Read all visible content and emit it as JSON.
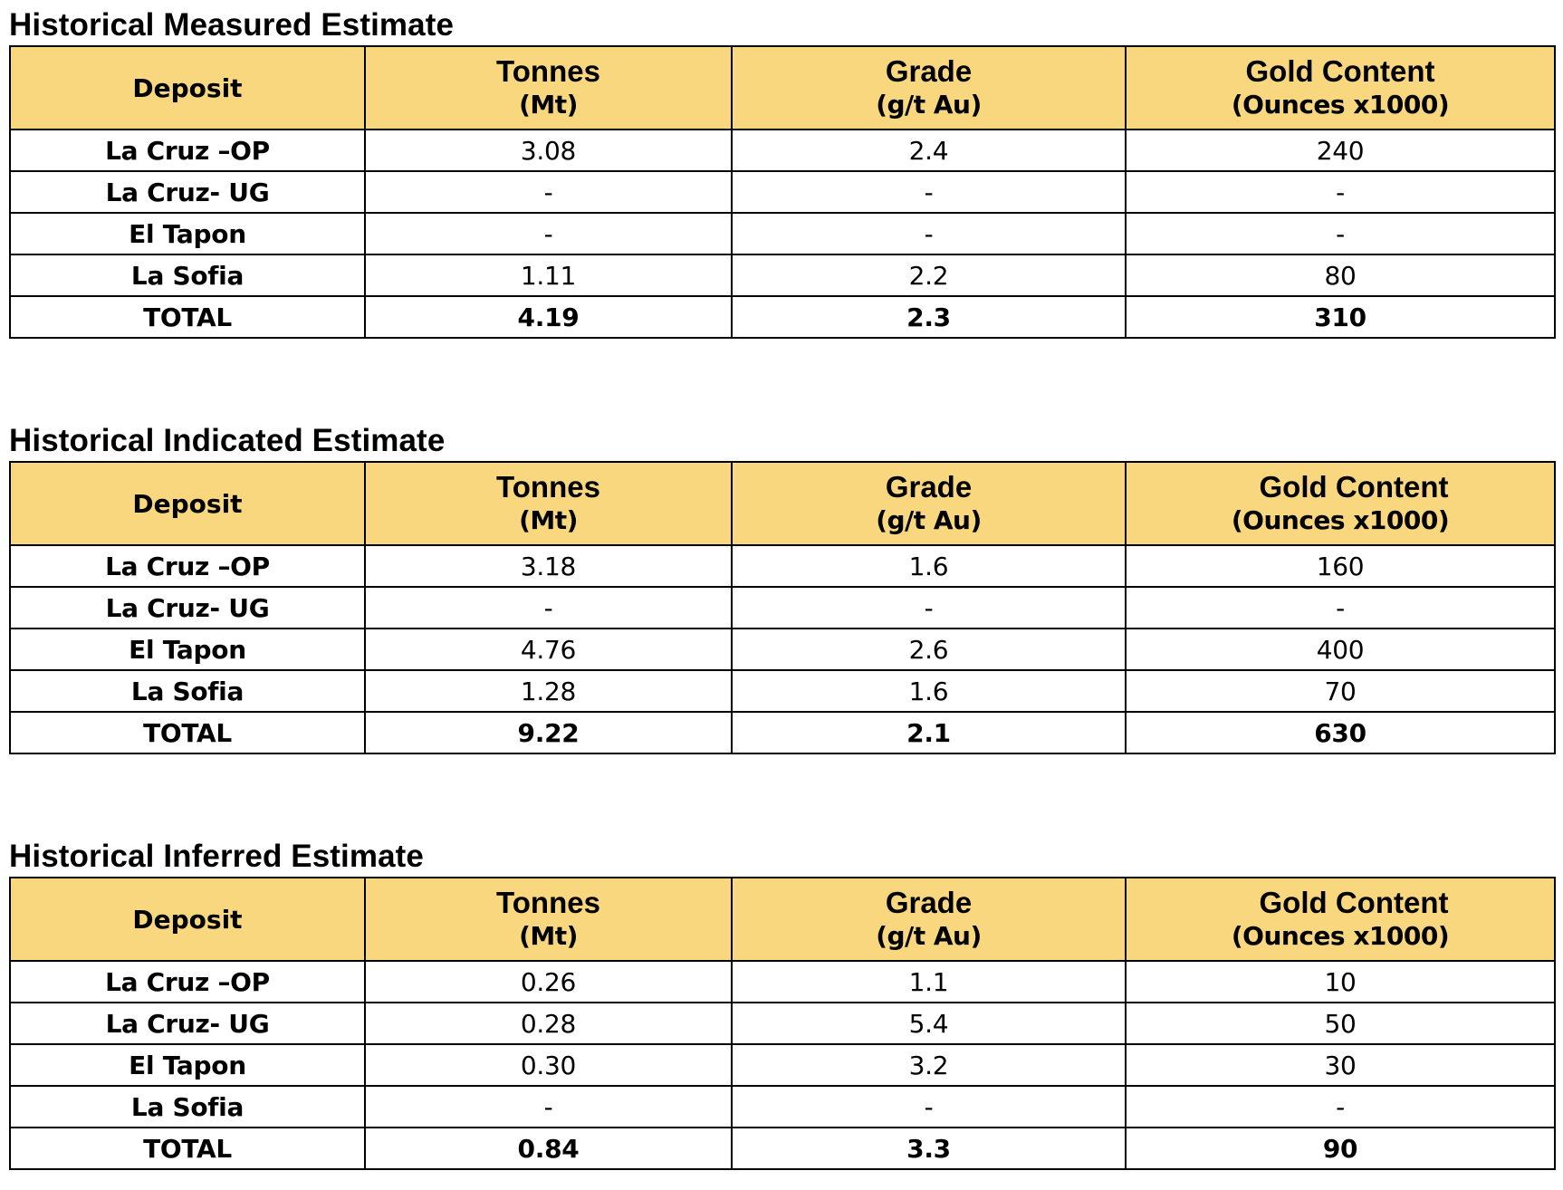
{
  "columns": {
    "deposit": "Deposit",
    "tonnes": "Tonnes",
    "tonnes_unit": "(Mt)",
    "grade": "Grade",
    "grade_unit": "(g/t Au)",
    "gold": "Gold Content",
    "gold_unit": "(Ounces x1000)"
  },
  "tables": [
    {
      "title": "Historical Measured Estimate",
      "rows": [
        {
          "deposit": "La Cruz –OP",
          "tonnes": "3.08",
          "grade": "2.4",
          "gold": "240"
        },
        {
          "deposit": "La Cruz- UG",
          "tonnes": "-",
          "grade": "-",
          "gold": "-"
        },
        {
          "deposit": "El Tapon",
          "tonnes": "-",
          "grade": "-",
          "gold": "-"
        },
        {
          "deposit": "La Sofia",
          "tonnes": "1.11",
          "grade": "2.2",
          "gold": "80"
        }
      ],
      "total": {
        "deposit": "TOTAL",
        "tonnes": "4.19",
        "grade": "2.3",
        "gold": "310"
      }
    },
    {
      "title": "Historical Indicated Estimate",
      "rows": [
        {
          "deposit": "La Cruz –OP",
          "tonnes": "3.18",
          "grade": "1.6",
          "gold": "160"
        },
        {
          "deposit": "La Cruz- UG",
          "tonnes": "-",
          "grade": "-",
          "gold": "-"
        },
        {
          "deposit": "El Tapon",
          "tonnes": "4.76",
          "grade": "2.6",
          "gold": "400"
        },
        {
          "deposit": "La Sofia",
          "tonnes": "1.28",
          "grade": "1.6",
          "gold": "70"
        }
      ],
      "total": {
        "deposit": "TOTAL",
        "tonnes": "9.22",
        "grade": "2.1",
        "gold": "630"
      }
    },
    {
      "title": "Historical Inferred Estimate",
      "rows": [
        {
          "deposit": "La Cruz –OP",
          "tonnes": "0.26",
          "grade": "1.1",
          "gold": "10"
        },
        {
          "deposit": "La Cruz- UG",
          "tonnes": "0.28",
          "grade": "5.4",
          "gold": "50"
        },
        {
          "deposit": "El Tapon",
          "tonnes": "0.30",
          "grade": "3.2",
          "gold": "30"
        },
        {
          "deposit": "La Sofia",
          "tonnes": "-",
          "grade": "-",
          "gold": "-"
        }
      ],
      "total": {
        "deposit": "TOTAL",
        "tonnes": "0.84",
        "grade": "3.3",
        "gold": "90"
      }
    }
  ]
}
